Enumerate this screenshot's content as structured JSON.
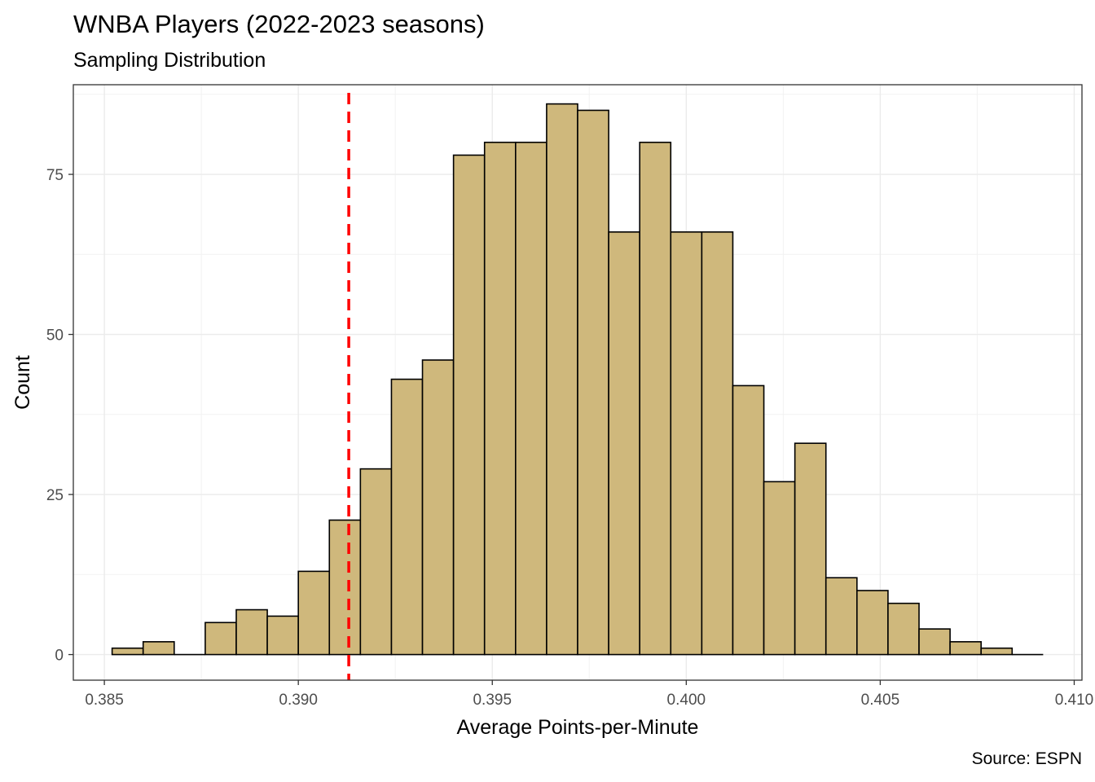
{
  "title": "WNBA Players (2022-2023 seasons)",
  "subtitle": "Sampling Distribution",
  "caption": "Source: ESPN",
  "chart_data": {
    "type": "bar",
    "title": "WNBA Players (2022-2023 seasons)",
    "subtitle": "Sampling Distribution",
    "xlabel": "Average Points-per-Minute",
    "ylabel": "Count",
    "xlim": [
      0.3842,
      0.4102
    ],
    "ylim": [
      -4,
      89
    ],
    "x_ticks": [
      0.385,
      0.39,
      0.395,
      0.4,
      0.405,
      0.41
    ],
    "x_tick_labels": [
      "0.385",
      "0.390",
      "0.395",
      "0.400",
      "0.405",
      "0.410"
    ],
    "y_ticks": [
      0,
      25,
      50,
      75
    ],
    "y_tick_labels": [
      "0",
      "25",
      "50",
      "75"
    ],
    "bin_width": 0.0008,
    "bin_start": 0.3852,
    "counts": [
      1,
      2,
      0,
      5,
      7,
      6,
      13,
      21,
      29,
      43,
      46,
      78,
      80,
      80,
      86,
      85,
      66,
      80,
      66,
      66,
      42,
      27,
      33,
      12,
      10,
      8,
      4,
      2,
      1,
      0
    ],
    "reference_line": {
      "x": 0.3913,
      "color": "#ff0000",
      "style": "dashed"
    },
    "bar_fill": "#cfb87c",
    "bar_stroke": "#000000",
    "grid": true,
    "legend": "none"
  }
}
